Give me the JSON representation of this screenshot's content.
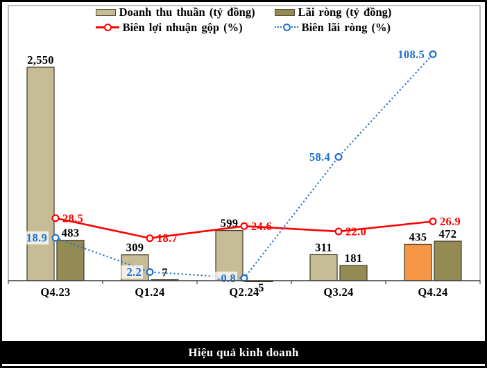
{
  "title": "Hiệu quả kinh doanh",
  "colors": {
    "revenue": "#C6BD97",
    "revenue_highlight": "#F69646",
    "net_profit": "#948A54",
    "gross_margin_line": "#FF0000",
    "net_margin_line": "#1F6FD0",
    "axis": "#404040",
    "plot_border": "#8C8C8C",
    "bar_border": "#3f3a28",
    "label_text": "#000000",
    "title_bg": "#000000",
    "title_text": "#FFFFFF"
  },
  "legend": [
    {
      "label": "Doanh thu thuần (tỷ đồng)",
      "swatch": "bar",
      "color": "#C6BD97"
    },
    {
      "label": "Lãi ròng (tỷ đồng)",
      "swatch": "bar",
      "color": "#948A54"
    },
    {
      "label": "Biên lợi nhuận gộp (%)",
      "swatch": "line-solid",
      "color": "#FF0000"
    },
    {
      "label": "Biên lãi ròng (%)",
      "swatch": "line-dotted",
      "color": "#1F6FD0"
    }
  ],
  "chart_data": {
    "type": "combo bar+line",
    "categories": [
      "Q4.23",
      "Q1.24",
      "Q2.24",
      "Q3.24",
      "Q4.24"
    ],
    "bar_unit": "tỷ đồng",
    "line_unit": "%",
    "grid": false,
    "legend_position": "top",
    "bar_series": [
      {
        "name": "Doanh thu thuần (tỷ đồng)",
        "values": [
          2550,
          309,
          599,
          311,
          435
        ],
        "labels": [
          "2,550",
          "309",
          "599",
          "311",
          "435"
        ],
        "colors": [
          "#C6BD97",
          "#C6BD97",
          "#C6BD97",
          "#C6BD97",
          "#F69646"
        ]
      },
      {
        "name": "Lãi ròng (tỷ đồng)",
        "values": [
          483,
          7,
          -5,
          181,
          472
        ],
        "labels": [
          "483",
          "7",
          "-5",
          "181",
          "472"
        ],
        "colors": [
          "#948A54",
          "#948A54",
          "#948A54",
          "#948A54",
          "#948A54"
        ]
      }
    ],
    "line_series": [
      {
        "name": "Biên lợi nhuận gộp (%)",
        "values": [
          28.5,
          18.7,
          24.6,
          22.0,
          26.9
        ],
        "labels": [
          "28.5",
          "18.7",
          "24.6",
          "22.0",
          "26.9"
        ],
        "color": "#FF0000",
        "style": "solid",
        "label_side": "right",
        "label_bg": false
      },
      {
        "name": "Biên lãi ròng (%)",
        "values": [
          18.9,
          2.2,
          -0.8,
          58.4,
          108.5
        ],
        "labels": [
          "18.9",
          "2.2",
          "-0.8",
          "58.4",
          "108.5"
        ],
        "color": "#1F6FD0",
        "style": "dotted",
        "label_side": "left",
        "label_bg": true
      }
    ]
  }
}
